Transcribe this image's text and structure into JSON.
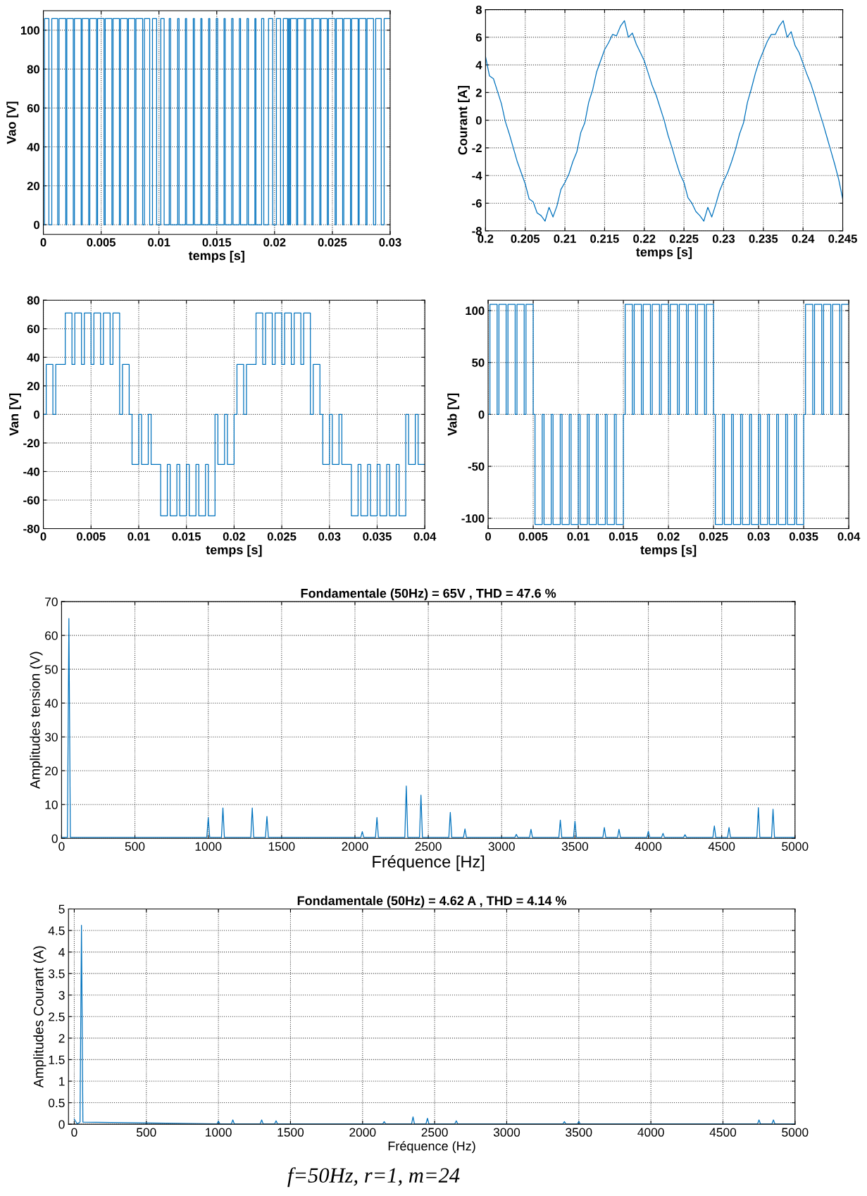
{
  "chart_data": [
    {
      "type": "step",
      "xlabel": "temps [s]",
      "ylabel": "Vao [V]",
      "xlim": [
        0,
        0.03
      ],
      "ylim": [
        -5,
        110
      ],
      "xticks": [
        0,
        0.005,
        0.01,
        0.015,
        0.02,
        0.025,
        0.03
      ],
      "yticks": [
        0,
        20,
        40,
        60,
        80,
        100
      ],
      "grid": true,
      "series": [
        {
          "color": "#0072bd",
          "x": [
            0,
            0.0001,
            0.00048,
            0.00073,
            0.00124,
            0.00136,
            0.00194,
            0.00203,
            0.00259,
            0.00269,
            0.00327,
            0.00336,
            0.00392,
            0.00402,
            0.0046,
            0.00469,
            0.00525,
            0.00535,
            0.00593,
            0.00603,
            0.00658,
            0.00668,
            0.00726,
            0.00736,
            0.00791,
            0.00801,
            0.00859,
            0.00874,
            0.0092,
            0.00944,
            0.0098,
            0.01016,
            0.01045,
            0.01089,
            0.01101,
            0.01162,
            0.01174,
            0.01229,
            0.01239,
            0.01297,
            0.01307,
            0.01362,
            0.01372,
            0.0143,
            0.0144,
            0.01496,
            0.01508,
            0.01563,
            0.01573,
            0.01629,
            0.01641,
            0.01696,
            0.01706,
            0.01762,
            0.01774,
            0.0183,
            0.01839,
            0.01888,
            0.01907,
            0.01948,
            0.01984,
            0.02016,
            0.02052,
            0.02076,
            0.02113,
            0.02122,
            0.0213,
            0.02139,
            0.0219,
            0.022,
            0.02258,
            0.02268,
            0.02323,
            0.02333,
            0.02391,
            0.02401,
            0.02456,
            0.02466,
            0.02524,
            0.02534,
            0.02589,
            0.02599,
            0.02657,
            0.02667,
            0.02723,
            0.02732,
            0.0279,
            0.028,
            0.02856,
            0.02875,
            0.02923,
            0.02948,
            0.03
          ],
          "values": [
            0,
            106,
            0,
            106,
            0,
            106,
            0,
            106,
            0,
            106,
            0,
            106,
            0,
            106,
            0,
            106,
            0,
            106,
            0,
            106,
            0,
            106,
            0,
            106,
            0,
            106,
            0,
            106,
            0,
            106,
            0,
            106,
            0,
            106,
            0,
            106,
            0,
            106,
            0,
            106,
            0,
            106,
            0,
            106,
            0,
            106,
            0,
            106,
            0,
            106,
            0,
            106,
            0,
            106,
            0,
            106,
            0,
            106,
            0,
            106,
            0,
            106,
            0,
            106,
            0,
            106,
            0,
            106,
            0,
            106,
            0,
            106,
            0,
            106,
            0,
            106,
            0,
            106,
            0,
            106,
            0,
            106,
            0,
            106,
            0,
            106,
            0,
            106,
            0,
            106,
            0,
            106,
            106
          ]
        }
      ]
    },
    {
      "type": "line",
      "xlabel": "temps [s]",
      "ylabel": "Courant [A]",
      "xlim": [
        0.2,
        0.245
      ],
      "ylim": [
        -8,
        8
      ],
      "xticks": [
        0.2,
        0.205,
        0.21,
        0.215,
        0.22,
        0.225,
        0.23,
        0.235,
        0.24,
        0.245
      ],
      "yticks": [
        -8,
        -6,
        -4,
        -2,
        0,
        2,
        4,
        6,
        8
      ],
      "grid": true,
      "series": [
        {
          "color": "#0072bd",
          "x": [
            0.2,
            0.2005,
            0.201,
            0.2015,
            0.202,
            0.2025,
            0.203,
            0.2035,
            0.204,
            0.2045,
            0.205,
            0.2055,
            0.206,
            0.2065,
            0.207,
            0.2075,
            0.208,
            0.2085,
            0.209,
            0.2095,
            0.21,
            0.2105,
            0.211,
            0.2115,
            0.212,
            0.2125,
            0.213,
            0.2135,
            0.214,
            0.2145,
            0.215,
            0.2155,
            0.216,
            0.2165,
            0.217,
            0.2175,
            0.218,
            0.2185,
            0.219,
            0.2195,
            0.22,
            0.2205,
            0.221,
            0.2215,
            0.222,
            0.2225,
            0.223,
            0.2235,
            0.224,
            0.2245,
            0.225,
            0.2255,
            0.226,
            0.2265,
            0.227,
            0.2275,
            0.228,
            0.2285,
            0.229,
            0.2295,
            0.23,
            0.2305,
            0.231,
            0.2315,
            0.232,
            0.2325,
            0.233,
            0.2335,
            0.234,
            0.2345,
            0.235,
            0.2355,
            0.236,
            0.2365,
            0.237,
            0.2375,
            0.238,
            0.2385,
            0.239,
            0.2395,
            0.24,
            0.2405,
            0.241,
            0.2415,
            0.242,
            0.2425,
            0.243,
            0.2435,
            0.244,
            0.2445,
            0.245
          ],
          "values": [
            4.6,
            3.2,
            3.0,
            2.1,
            1.2,
            -0.1,
            -1.0,
            -2.0,
            -3.0,
            -3.8,
            -4.6,
            -5.7,
            -5.9,
            -6.7,
            -6.9,
            -7.3,
            -6.3,
            -7.0,
            -6.2,
            -5.0,
            -4.5,
            -3.9,
            -3.0,
            -2.3,
            -0.9,
            -0.2,
            1.3,
            2.2,
            3.5,
            4.3,
            5.1,
            5.6,
            6.2,
            6.1,
            6.8,
            7.2,
            6.0,
            6.3,
            5.5,
            4.9,
            4.3,
            3.4,
            2.5,
            1.8,
            0.9,
            0.0,
            -1.1,
            -2.0,
            -3.0,
            -3.9,
            -4.5,
            -5.6,
            -6.0,
            -6.6,
            -6.9,
            -7.3,
            -6.3,
            -7.0,
            -6.1,
            -5.1,
            -4.4,
            -3.8,
            -3.0,
            -2.1,
            -1.0,
            -0.2,
            1.3,
            2.3,
            3.4,
            4.3,
            5.0,
            5.7,
            6.2,
            6.2,
            6.8,
            7.2,
            6.0,
            6.4,
            5.4,
            4.9,
            4.1,
            3.3,
            2.6,
            1.7,
            0.7,
            -0.2,
            -1.2,
            -2.2,
            -3.2,
            -4.3,
            -5.7
          ]
        }
      ]
    },
    {
      "type": "step",
      "xlabel": "temps [s]",
      "ylabel": "Van [V]",
      "xlim": [
        0,
        0.04
      ],
      "ylim": [
        -80,
        80
      ],
      "xticks": [
        0,
        0.005,
        0.01,
        0.015,
        0.02,
        0.025,
        0.03,
        0.035,
        0.04
      ],
      "yticks": [
        -80,
        -60,
        -40,
        -20,
        0,
        20,
        40,
        60,
        80
      ],
      "grid": true,
      "series": [
        {
          "color": "#0072bd",
          "x": [
            0,
            0.0003,
            0.001,
            0.0013,
            0.002,
            0.0023,
            0.003,
            0.0033,
            0.004,
            0.0043,
            0.005,
            0.0053,
            0.006,
            0.0063,
            0.007,
            0.0073,
            0.008,
            0.0083,
            0.009,
            0.0093,
            0.01,
            0.0103,
            0.011,
            0.0113,
            0.012,
            0.0123,
            0.013,
            0.0133,
            0.014,
            0.0143,
            0.015,
            0.0153,
            0.016,
            0.0163,
            0.017,
            0.0173,
            0.018,
            0.0183,
            0.019,
            0.0193,
            0.02,
            0.0203,
            0.021,
            0.0213,
            0.022,
            0.0223,
            0.023,
            0.0233,
            0.024,
            0.0243,
            0.025,
            0.0253,
            0.026,
            0.0263,
            0.027,
            0.0273,
            0.028,
            0.0283,
            0.029,
            0.0293,
            0.03,
            0.0303,
            0.031,
            0.0313,
            0.032,
            0.0323,
            0.033,
            0.0333,
            0.034,
            0.0343,
            0.035,
            0.0353,
            0.036,
            0.0363,
            0.037,
            0.0373,
            0.038,
            0.0383,
            0.039,
            0.0393,
            0.04
          ],
          "values": [
            0,
            35,
            0,
            35,
            35,
            71,
            35,
            71,
            35,
            71,
            35,
            71,
            35,
            71,
            35,
            71,
            0,
            35,
            0,
            -35,
            0,
            -35,
            0,
            -35,
            -35,
            -71,
            -35,
            -71,
            -35,
            -71,
            -35,
            -71,
            -35,
            -71,
            -35,
            -71,
            0,
            -35,
            0,
            -35,
            0,
            35,
            0,
            35,
            35,
            71,
            35,
            71,
            35,
            71,
            35,
            71,
            35,
            71,
            35,
            71,
            0,
            35,
            0,
            -35,
            0,
            -35,
            0,
            -35,
            -35,
            -71,
            -35,
            -71,
            -35,
            -71,
            -35,
            -71,
            -35,
            -71,
            -35,
            -71,
            0,
            -35,
            0,
            -35,
            -35
          ]
        }
      ]
    },
    {
      "type": "step",
      "xlabel": "temps [s]",
      "ylabel": "Vab [V]",
      "xlim": [
        0,
        0.04
      ],
      "ylim": [
        -110,
        110
      ],
      "xticks": [
        0,
        0.005,
        0.01,
        0.015,
        0.02,
        0.025,
        0.03,
        0.035,
        0.04
      ],
      "yticks": [
        -100,
        -50,
        0,
        50,
        100
      ],
      "grid": true,
      "series": [
        {
          "color": "#0072bd",
          "x": [
            0,
            0.0002,
            0.001,
            0.0012,
            0.002,
            0.0022,
            0.003,
            0.0032,
            0.004,
            0.0042,
            0.005,
            0.0052,
            0.006,
            0.0062,
            0.007,
            0.0072,
            0.008,
            0.0082,
            0.009,
            0.0092,
            0.01,
            0.0102,
            0.011,
            0.0112,
            0.012,
            0.0122,
            0.013,
            0.0132,
            0.014,
            0.0142,
            0.015,
            0.0152,
            0.016,
            0.0162,
            0.017,
            0.0172,
            0.018,
            0.0182,
            0.019,
            0.0192,
            0.02,
            0.0202,
            0.021,
            0.0212,
            0.022,
            0.0222,
            0.023,
            0.0232,
            0.024,
            0.0242,
            0.025,
            0.0252,
            0.026,
            0.0262,
            0.027,
            0.0272,
            0.028,
            0.0282,
            0.029,
            0.0292,
            0.03,
            0.0302,
            0.031,
            0.0312,
            0.032,
            0.0322,
            0.033,
            0.0332,
            0.034,
            0.0342,
            0.035,
            0.0352,
            0.036,
            0.0362,
            0.037,
            0.0372,
            0.038,
            0.0382,
            0.039,
            0.0392,
            0.04
          ],
          "values": [
            0,
            106,
            0,
            106,
            0,
            106,
            0,
            106,
            0,
            106,
            0,
            -106,
            0,
            -106,
            0,
            -106,
            0,
            -106,
            0,
            -106,
            0,
            -106,
            0,
            -106,
            0,
            -106,
            0,
            -106,
            0,
            -106,
            0,
            106,
            0,
            106,
            0,
            106,
            0,
            106,
            0,
            106,
            0,
            106,
            0,
            106,
            0,
            106,
            0,
            106,
            0,
            106,
            0,
            -106,
            0,
            -106,
            0,
            -106,
            0,
            -106,
            0,
            -106,
            0,
            -106,
            0,
            -106,
            0,
            -106,
            0,
            -106,
            0,
            -106,
            0,
            106,
            0,
            106,
            0,
            106,
            0,
            106,
            0,
            106,
            106
          ]
        }
      ]
    },
    {
      "type": "line",
      "title": "Fondamentale (50Hz) = 65V , THD = 47.6 %",
      "xlabel": "Fréquence [Hz]",
      "ylabel": "Amplitudes tension (V)",
      "xlim": [
        0,
        5000
      ],
      "ylim": [
        0,
        70
      ],
      "xticks": [
        0,
        500,
        1000,
        1500,
        2000,
        2500,
        3000,
        3500,
        4000,
        4500,
        5000
      ],
      "yticks": [
        0,
        10,
        20,
        30,
        40,
        50,
        60,
        70
      ],
      "grid": true,
      "series": [
        {
          "color": "#0072bd",
          "x": [
            0,
            40,
            50,
            60,
            990,
            1000,
            1010,
            1090,
            1100,
            1110,
            1290,
            1300,
            1310,
            1390,
            1400,
            1410,
            2040,
            2050,
            2060,
            2140,
            2150,
            2160,
            2340,
            2350,
            2360,
            2440,
            2450,
            2460,
            2640,
            2650,
            2660,
            2740,
            2750,
            2760,
            3090,
            3100,
            3110,
            3190,
            3200,
            3210,
            3390,
            3400,
            3410,
            3490,
            3500,
            3510,
            3690,
            3700,
            3710,
            3790,
            3800,
            3810,
            3990,
            4000,
            4010,
            4090,
            4100,
            4110,
            4240,
            4250,
            4260,
            4440,
            4450,
            4460,
            4540,
            4550,
            4560,
            4740,
            4750,
            4760,
            4840,
            4850,
            4860,
            5000
          ],
          "values": [
            0.3,
            0.3,
            65,
            0.3,
            0.3,
            6.2,
            0.3,
            0.3,
            9,
            0.3,
            0.3,
            9,
            0.3,
            0.3,
            6.5,
            0.3,
            0.3,
            2,
            0.3,
            0.3,
            6.2,
            0.3,
            0.3,
            15.5,
            0.3,
            0.3,
            12.8,
            0.3,
            0.3,
            7.7,
            0.3,
            0.3,
            2.8,
            0.3,
            0.3,
            1.2,
            0.3,
            0.3,
            2.7,
            0.3,
            0.3,
            5.4,
            0.3,
            0.3,
            5.1,
            0.3,
            0.3,
            3.2,
            0.3,
            0.3,
            2.7,
            0.3,
            0.3,
            2.1,
            0.3,
            0.3,
            1.5,
            0.3,
            0.3,
            1.1,
            0.3,
            0.3,
            3.7,
            0.3,
            0.3,
            3.2,
            0.3,
            0.3,
            9.1,
            0.3,
            0.3,
            8.6,
            0.3,
            0.3
          ]
        }
      ]
    },
    {
      "type": "line",
      "title": "Fondamentale (50Hz) = 4.62 A , THD = 4.14 %",
      "xlabel": "Fréquence (Hz)",
      "ylabel": "Amplitudes Courant (A)",
      "xlim": [
        -40,
        5000
      ],
      "ylim": [
        0,
        5
      ],
      "xticks": [
        0,
        500,
        1000,
        1500,
        2000,
        2500,
        3000,
        3500,
        4000,
        4500,
        5000
      ],
      "yticks": [
        0,
        0.5,
        1,
        1.5,
        2,
        2.5,
        3,
        3.5,
        4,
        4.5,
        5
      ],
      "grid": true,
      "annotations": [
        "f=50Hz, r=1, m=24"
      ],
      "series": [
        {
          "color": "#0072bd",
          "x": [
            0,
            20,
            40,
            50,
            60,
            990,
            1000,
            1010,
            1090,
            1100,
            1110,
            1290,
            1300,
            1310,
            1390,
            1400,
            1410,
            2140,
            2150,
            2160,
            2340,
            2350,
            2360,
            2440,
            2450,
            2460,
            2640,
            2650,
            2660,
            3390,
            3400,
            3410,
            3490,
            3500,
            3510,
            4740,
            4750,
            4760,
            4840,
            4850,
            4860,
            5000
          ],
          "values": [
            0.12,
            0.01,
            0.05,
            4.62,
            0.05,
            0.01,
            0.07,
            0.01,
            0.01,
            0.1,
            0.01,
            0.01,
            0.1,
            0.01,
            0.01,
            0.08,
            0.01,
            0.01,
            0.06,
            0.01,
            0.01,
            0.17,
            0.01,
            0.01,
            0.14,
            0.01,
            0.01,
            0.08,
            0.01,
            0.01,
            0.06,
            0.01,
            0.01,
            0.06,
            0.01,
            0.01,
            0.1,
            0.01,
            0.01,
            0.1,
            0.01,
            0.01
          ]
        }
      ]
    }
  ]
}
